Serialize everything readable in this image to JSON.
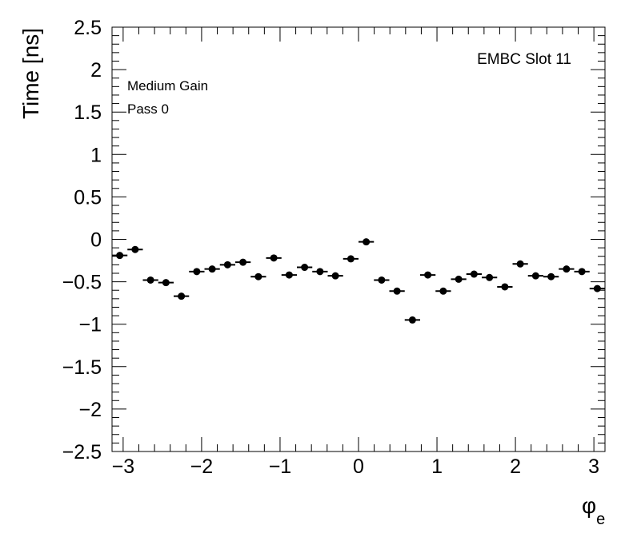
{
  "chart_data": {
    "type": "scatter",
    "title": "",
    "ylabel": "Time [ns]",
    "xlabel_main": "φ",
    "xlabel_sub": "e",
    "xlim": [
      -3.1416,
      3.1416
    ],
    "ylim": [
      -2.5,
      2.5
    ],
    "x_ticks": [
      -3,
      -2,
      -1,
      0,
      1,
      2,
      3
    ],
    "x_tick_labels": [
      "−3",
      "−2",
      "−1",
      "0",
      "1",
      "2",
      "3"
    ],
    "y_ticks": [
      -2.5,
      -2,
      -1.5,
      -1,
      -0.5,
      0,
      0.5,
      1,
      1.5,
      2,
      2.5
    ],
    "y_tick_labels": [
      "−2.5",
      "−2",
      "−1.5",
      "−1",
      "−0.5",
      "0",
      "0.5",
      "1",
      "1.5",
      "2",
      "2.5"
    ],
    "grid": false,
    "annotations": {
      "top_right": "EMBC Slot 11",
      "line1": "Medium Gain",
      "line2": "Pass 0"
    },
    "bin_width": 0.19635,
    "x": [
      -3.0434,
      -2.8471,
      -2.6507,
      -2.4544,
      -2.258,
      -2.0617,
      -1.8653,
      -1.669,
      -1.4726,
      -1.2763,
      -1.0799,
      -0.8836,
      -0.6872,
      -0.4909,
      -0.2945,
      -0.0982,
      0.0982,
      0.2945,
      0.4909,
      0.6872,
      0.8836,
      1.0799,
      1.2763,
      1.4726,
      1.669,
      1.8653,
      2.0617,
      2.258,
      2.4544,
      2.6507,
      2.8471,
      3.0434
    ],
    "y": [
      -0.19,
      -0.12,
      -0.48,
      -0.51,
      -0.67,
      -0.38,
      -0.35,
      -0.3,
      -0.27,
      -0.44,
      -0.22,
      -0.42,
      -0.33,
      -0.38,
      -0.43,
      -0.23,
      -0.03,
      -0.48,
      -0.61,
      -0.95,
      -0.42,
      -0.61,
      -0.47,
      -0.41,
      -0.45,
      -0.56,
      -0.29,
      -0.43,
      -0.44,
      -0.35,
      -0.38,
      -0.58
    ]
  }
}
